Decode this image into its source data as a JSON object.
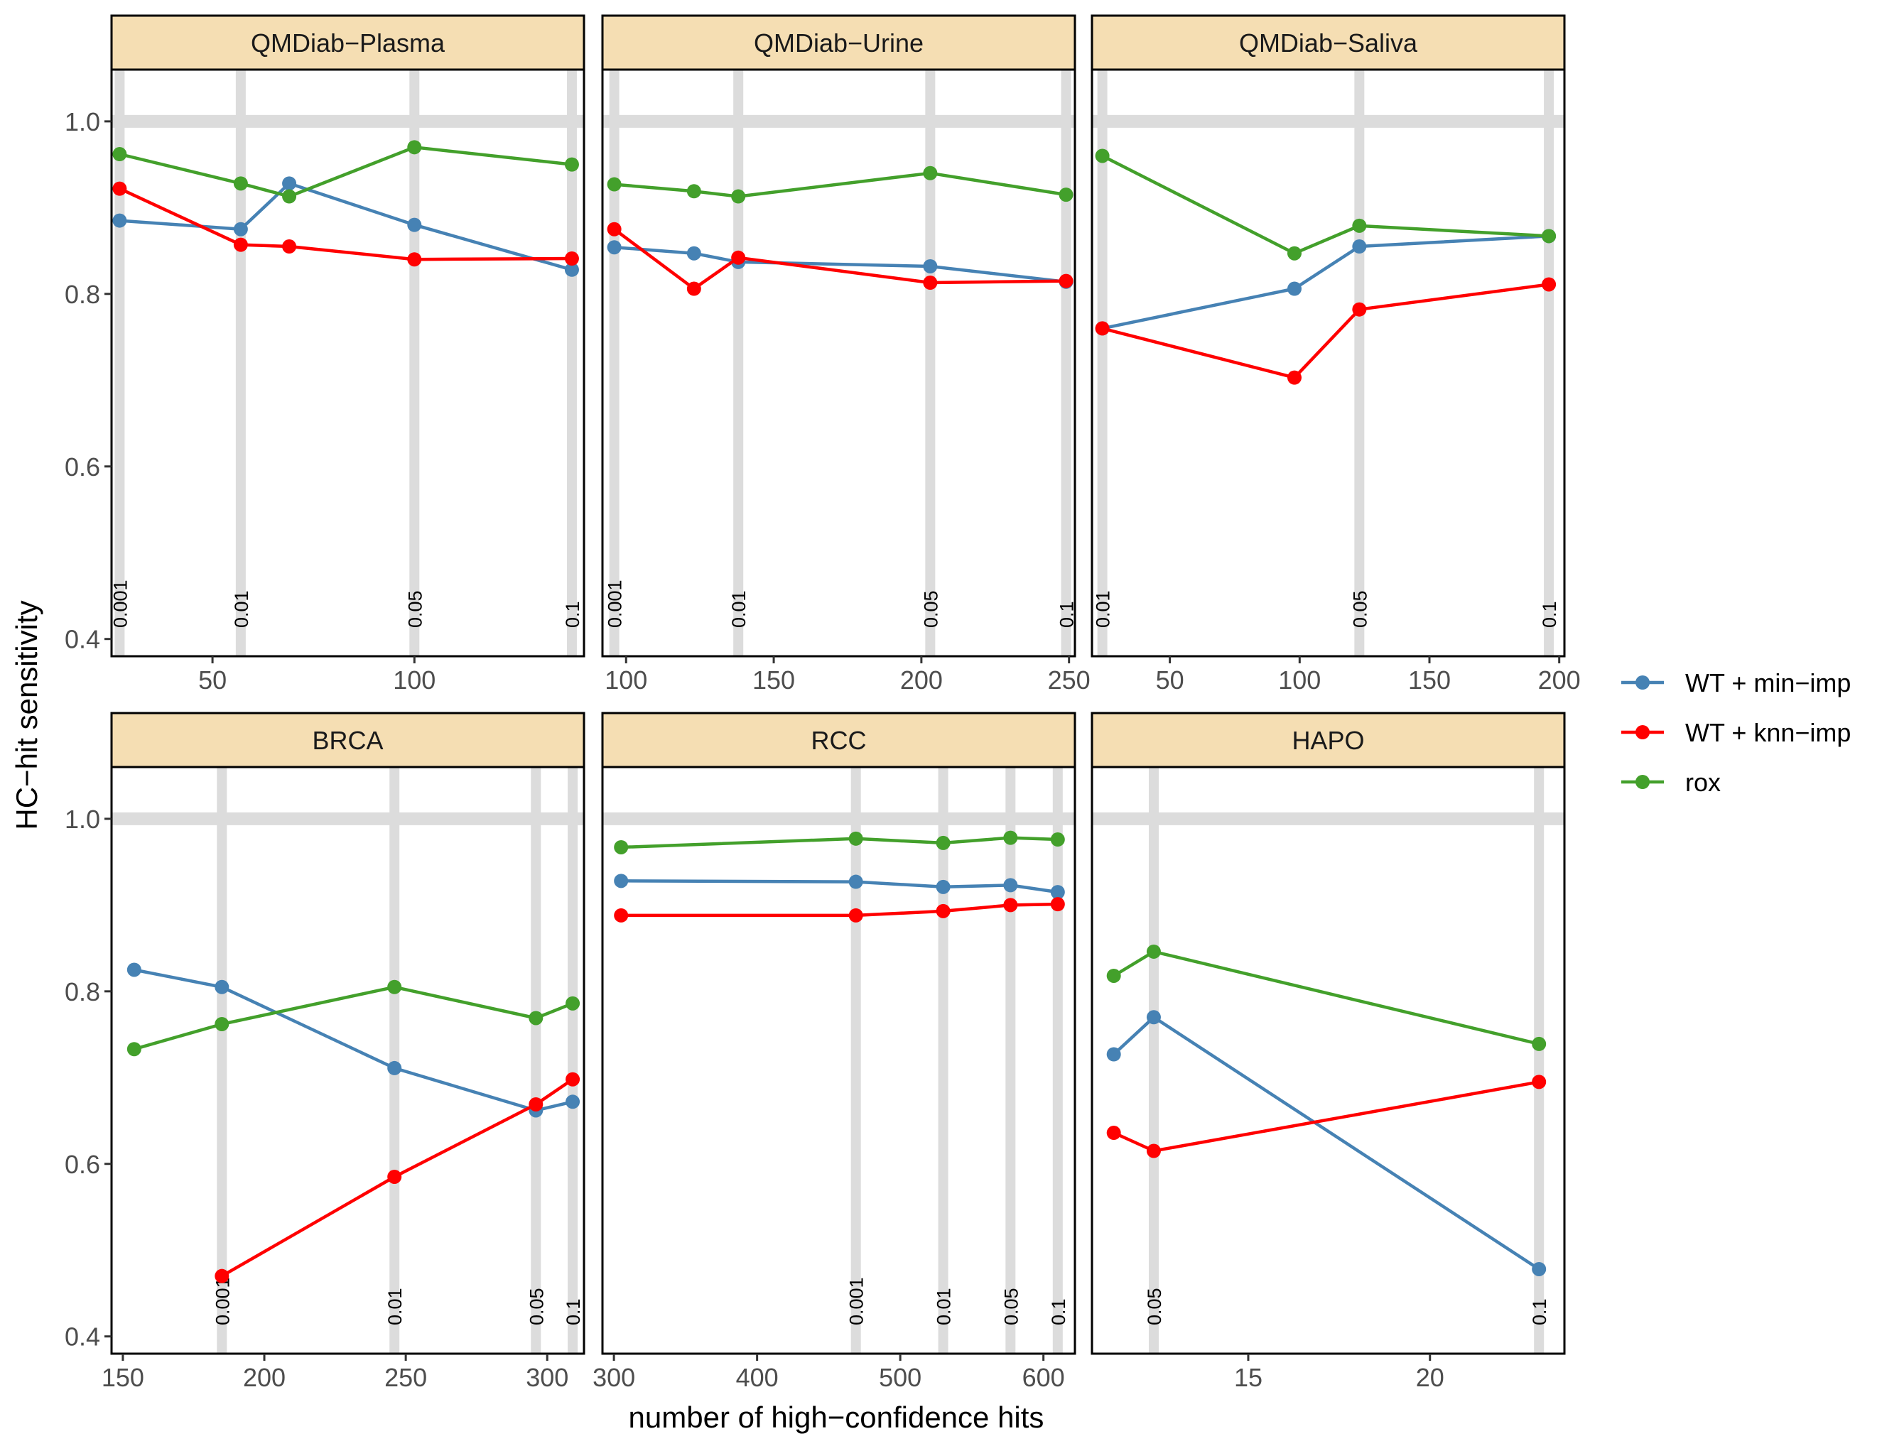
{
  "chart_data": {
    "type": "line",
    "xlabel": "number of high−confidence hits",
    "ylabel": "HC−hit sensitivity",
    "yticks": [
      0.4,
      0.6,
      0.8,
      1.0
    ],
    "ytick_labels": [
      "0.4",
      "0.6",
      "0.8",
      "1.0"
    ],
    "reference_line": 1.0,
    "legend": {
      "position": "right",
      "entries": [
        {
          "name": "WT + min−imp",
          "color": "#4682b4"
        },
        {
          "name": "WT + knn−imp",
          "color": "#ff0000"
        },
        {
          "name": "rox",
          "color": "#43a02b"
        }
      ]
    },
    "panels": [
      {
        "title": "QMDiab−Plasma",
        "xlim": [
          25,
          142
        ],
        "ylim": [
          0.38,
          1.06
        ],
        "xticks": [
          50,
          100
        ],
        "xtick_labels": [
          "50",
          "100"
        ],
        "vlines": [
          {
            "x": 27,
            "label": "0.001"
          },
          {
            "x": 57,
            "label": "0.01"
          },
          {
            "x": 100,
            "label": "0.05"
          },
          {
            "x": 139,
            "label": "0.1"
          }
        ],
        "series": [
          {
            "name": "WT + min−imp",
            "x": [
              27,
              57,
              69,
              100,
              139
            ],
            "y": [
              0.885,
              0.875,
              0.928,
              0.88,
              0.828
            ]
          },
          {
            "name": "WT + knn−imp",
            "x": [
              27,
              57,
              69,
              100,
              139
            ],
            "y": [
              0.922,
              0.857,
              0.855,
              0.84,
              0.841
            ]
          },
          {
            "name": "rox",
            "x": [
              27,
              57,
              69,
              100,
              139
            ],
            "y": [
              0.962,
              0.928,
              0.913,
              0.97,
              0.95
            ]
          }
        ]
      },
      {
        "title": "QMDiab−Urine",
        "xlim": [
          92,
          252
        ],
        "ylim": [
          0.38,
          1.06
        ],
        "xticks": [
          100,
          150,
          200,
          250
        ],
        "xtick_labels": [
          "100",
          "150",
          "200",
          "250"
        ],
        "vlines": [
          {
            "x": 96,
            "label": "0.001"
          },
          {
            "x": 138,
            "label": "0.01"
          },
          {
            "x": 203,
            "label": "0.05"
          },
          {
            "x": 249,
            "label": "0.1"
          }
        ],
        "series": [
          {
            "name": "WT + min−imp",
            "x": [
              96,
              123,
              138,
              203,
              249
            ],
            "y": [
              0.854,
              0.847,
              0.837,
              0.832,
              0.814
            ]
          },
          {
            "name": "WT + knn−imp",
            "x": [
              96,
              123,
              138,
              203,
              249
            ],
            "y": [
              0.875,
              0.806,
              0.842,
              0.813,
              0.815
            ]
          },
          {
            "name": "rox",
            "x": [
              96,
              123,
              138,
              203,
              249
            ],
            "y": [
              0.927,
              0.919,
              0.913,
              0.94,
              0.915
            ]
          }
        ]
      },
      {
        "title": "QMDiab−Saliva",
        "xlim": [
          20,
          202
        ],
        "ylim": [
          0.38,
          1.06
        ],
        "xticks": [
          50,
          100,
          150,
          200
        ],
        "xtick_labels": [
          "50",
          "100",
          "150",
          "200"
        ],
        "vlines": [
          {
            "x": 24,
            "label": "0.01"
          },
          {
            "x": 123,
            "label": "0.05"
          },
          {
            "x": 196,
            "label": "0.1"
          }
        ],
        "series": [
          {
            "name": "WT + min−imp",
            "x": [
              24,
              98,
              123,
              196
            ],
            "y": [
              0.76,
              0.806,
              0.855,
              0.867
            ]
          },
          {
            "name": "WT + knn−imp",
            "x": [
              24,
              98,
              123,
              196
            ],
            "y": [
              0.76,
              0.703,
              0.782,
              0.811
            ]
          },
          {
            "name": "rox",
            "x": [
              24,
              98,
              123,
              196
            ],
            "y": [
              0.96,
              0.847,
              0.879,
              0.867
            ]
          }
        ]
      },
      {
        "title": "BRCA",
        "xlim": [
          146,
          313
        ],
        "ylim": [
          0.38,
          1.06
        ],
        "xticks": [
          150,
          200,
          250,
          300
        ],
        "xtick_labels": [
          "150",
          "200",
          "250",
          "300"
        ],
        "vlines": [
          {
            "x": 185,
            "label": "0.001"
          },
          {
            "x": 246,
            "label": "0.01"
          },
          {
            "x": 296,
            "label": "0.05"
          },
          {
            "x": 309,
            "label": "0.1"
          }
        ],
        "series": [
          {
            "name": "WT + min−imp",
            "x": [
              154,
              185,
              246,
              296,
              309
            ],
            "y": [
              0.825,
              0.805,
              0.711,
              0.662,
              0.672
            ]
          },
          {
            "name": "WT + knn−imp",
            "x": [
              185,
              246,
              296,
              309
            ],
            "y": [
              0.47,
              0.585,
              0.669,
              0.698
            ]
          },
          {
            "name": "rox",
            "x": [
              154,
              185,
              246,
              296,
              309
            ],
            "y": [
              0.733,
              0.762,
              0.805,
              0.769,
              0.786
            ]
          }
        ]
      },
      {
        "title": "RCC",
        "xlim": [
          292,
          622
        ],
        "ylim": [
          0.38,
          1.06
        ],
        "xticks": [
          300,
          400,
          500,
          600
        ],
        "xtick_labels": [
          "300",
          "400",
          "500",
          "600"
        ],
        "vlines": [
          {
            "x": 469,
            "label": "0.001"
          },
          {
            "x": 530,
            "label": "0.01"
          },
          {
            "x": 577,
            "label": "0.05"
          },
          {
            "x": 610,
            "label": "0.1"
          }
        ],
        "series": [
          {
            "name": "WT + min−imp",
            "x": [
              305,
              469,
              530,
              577,
              610
            ],
            "y": [
              0.928,
              0.927,
              0.921,
              0.923,
              0.915
            ]
          },
          {
            "name": "WT + knn−imp",
            "x": [
              305,
              469,
              530,
              577,
              610
            ],
            "y": [
              0.888,
              0.888,
              0.893,
              0.9,
              0.901
            ]
          },
          {
            "name": "rox",
            "x": [
              305,
              469,
              530,
              577,
              610
            ],
            "y": [
              0.967,
              0.977,
              0.972,
              0.978,
              0.976
            ]
          }
        ]
      },
      {
        "title": "HAPO",
        "xlim": [
          10.7,
          23.7
        ],
        "ylim": [
          0.38,
          1.06
        ],
        "xticks": [
          15,
          20
        ],
        "xtick_labels": [
          "15",
          "20"
        ],
        "vlines": [
          {
            "x": 12.4,
            "label": "0.05"
          },
          {
            "x": 23,
            "label": "0.1"
          }
        ],
        "series": [
          {
            "name": "WT + min−imp",
            "x": [
              11.3,
              12.4,
              23
            ],
            "y": [
              0.727,
              0.77,
              0.478
            ]
          },
          {
            "name": "WT + knn−imp",
            "x": [
              11.3,
              12.4,
              23
            ],
            "y": [
              0.636,
              0.615,
              0.695
            ]
          },
          {
            "name": "rox",
            "x": [
              11.3,
              12.4,
              23
            ],
            "y": [
              0.818,
              0.846,
              0.739
            ]
          }
        ]
      }
    ]
  }
}
